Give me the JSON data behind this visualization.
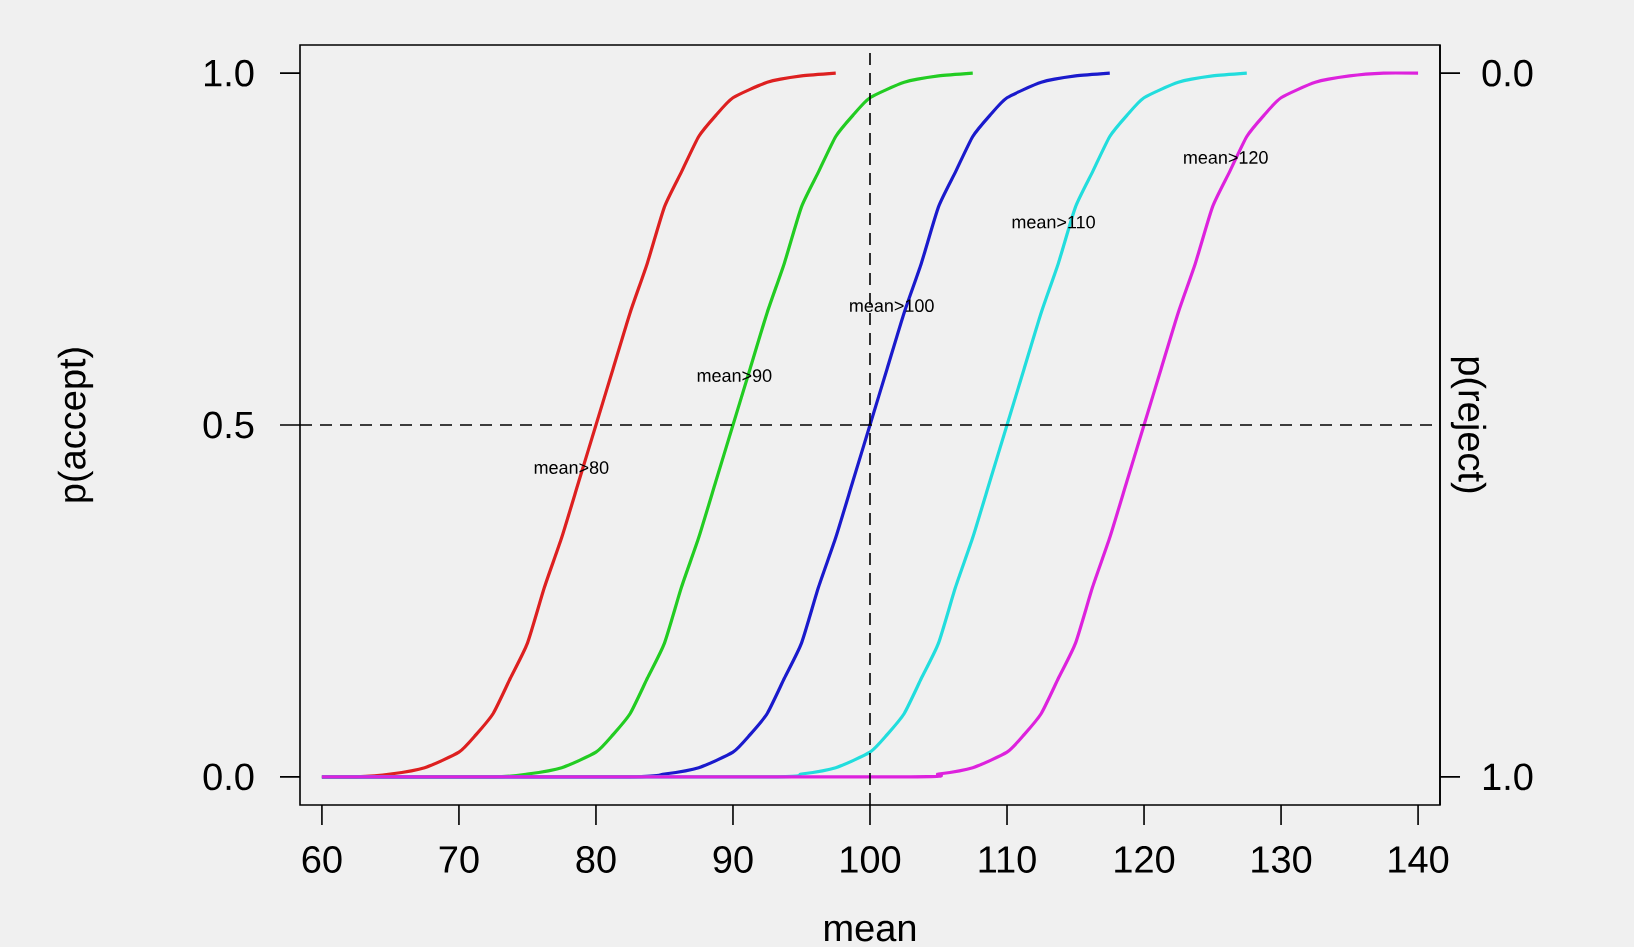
{
  "chart_data": {
    "type": "line",
    "xlabel": "mean",
    "ylabel": "p(accept)",
    "y2label": "p(reject)",
    "xlim": [
      58.4,
      141.6
    ],
    "xticks": [
      60,
      70,
      80,
      90,
      100,
      110,
      120,
      130,
      140
    ],
    "ylim": [
      -0.04,
      1.04
    ],
    "yticks": [
      {
        "value": 0,
        "label": "0.0"
      },
      {
        "value": 0.5,
        "label": "0.5"
      },
      {
        "value": 1,
        "label": "1.0"
      }
    ],
    "y2lim": [
      1.04,
      -0.04
    ],
    "y2ticks": [
      {
        "value": 0,
        "label": "0.0"
      },
      {
        "value": 1,
        "label": "1.0"
      }
    ],
    "grid": false,
    "marker": "none",
    "line_style": "solid",
    "series": [
      {
        "color": "#dd2020",
        "x": [
          60,
          62.5,
          65,
          67.5,
          70,
          71.25,
          72.5,
          73.75,
          75,
          76.25,
          77.5,
          78.75,
          80,
          81.25,
          82.5,
          83.75,
          85,
          86.25,
          87.5,
          88.75,
          90,
          92.5,
          95,
          97.5
        ],
        "values": [
          0,
          0,
          0.004,
          0.013,
          0.035,
          0.06,
          0.09,
          0.14,
          0.19,
          0.27,
          0.34,
          0.42,
          0.5,
          0.58,
          0.66,
          0.73,
          0.81,
          0.86,
          0.91,
          0.94,
          0.965,
          0.987,
          0.996,
          1
        ]
      },
      {
        "color": "#22cc22",
        "x": [
          60,
          72.5,
          75,
          77.5,
          80,
          81.25,
          82.5,
          83.75,
          85,
          86.25,
          87.5,
          88.75,
          90,
          91.25,
          92.5,
          93.75,
          95,
          96.25,
          97.5,
          98.75,
          100,
          102.5,
          105,
          107.5
        ],
        "values": [
          0,
          0,
          0.004,
          0.013,
          0.035,
          0.06,
          0.09,
          0.14,
          0.19,
          0.27,
          0.34,
          0.42,
          0.5,
          0.58,
          0.66,
          0.73,
          0.81,
          0.86,
          0.91,
          0.94,
          0.965,
          0.987,
          0.996,
          1
        ]
      },
      {
        "color": "#1a1acc",
        "x": [
          60,
          82.5,
          85,
          87.5,
          90,
          91.25,
          92.5,
          93.75,
          95,
          96.25,
          97.5,
          98.75,
          100,
          101.25,
          102.5,
          103.75,
          105,
          106.25,
          107.5,
          108.75,
          110,
          112.5,
          115,
          117.5
        ],
        "values": [
          0,
          0,
          0.004,
          0.013,
          0.035,
          0.06,
          0.09,
          0.14,
          0.19,
          0.27,
          0.34,
          0.42,
          0.5,
          0.58,
          0.66,
          0.73,
          0.81,
          0.86,
          0.91,
          0.94,
          0.965,
          0.987,
          0.996,
          1
        ]
      },
      {
        "color": "#22dddd",
        "x": [
          60,
          92.5,
          95,
          97.5,
          100,
          101.25,
          102.5,
          103.75,
          105,
          106.25,
          107.5,
          108.75,
          110,
          111.25,
          112.5,
          113.75,
          115,
          116.25,
          117.5,
          118.75,
          120,
          122.5,
          125,
          127.5
        ],
        "values": [
          0,
          0,
          0.004,
          0.013,
          0.035,
          0.06,
          0.09,
          0.14,
          0.19,
          0.27,
          0.34,
          0.42,
          0.5,
          0.58,
          0.66,
          0.73,
          0.81,
          0.86,
          0.91,
          0.94,
          0.965,
          0.987,
          0.996,
          1
        ]
      },
      {
        "color": "#dd22dd",
        "x": [
          60,
          102.5,
          105,
          107.5,
          110,
          111.25,
          112.5,
          113.75,
          115,
          116.25,
          117.5,
          118.75,
          120,
          121.25,
          122.5,
          123.75,
          125,
          126.25,
          127.5,
          128.75,
          130,
          132.5,
          135,
          137.5,
          140
        ],
        "values": [
          0,
          0,
          0.004,
          0.013,
          0.035,
          0.06,
          0.09,
          0.14,
          0.19,
          0.27,
          0.34,
          0.42,
          0.5,
          0.58,
          0.66,
          0.73,
          0.81,
          0.86,
          0.91,
          0.94,
          0.965,
          0.987,
          0.996,
          1,
          1
        ]
      }
    ],
    "ref_lines": [
      {
        "axis": "x",
        "value": 100,
        "color": "#000000",
        "line_style": "dashed"
      },
      {
        "axis": "y",
        "value": 0.5,
        "color": "#000000",
        "line_style": "dashed"
      }
    ],
    "annotations": [
      "mean>80",
      "mean>90",
      "mean>100",
      "mean>110",
      "mean>120"
    ]
  }
}
